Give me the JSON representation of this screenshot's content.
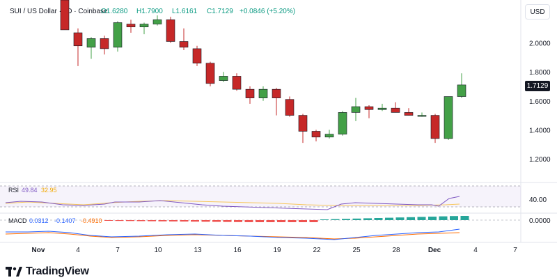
{
  "header": {
    "symbol": "SUI / US Dollar · 1D · Coinbase",
    "open": "O1.6280",
    "high": "H1.7900",
    "low": "L1.6161",
    "close": "C1.7129",
    "change": "+0.0846 (+5.20%)"
  },
  "currency_button": "USD",
  "last_price": "1.7129",
  "rsi": {
    "label": "RSI",
    "v1": "49.84",
    "v2": "32.95",
    "level": "40.00",
    "color_line": "#7e57c2",
    "color_ma": "#f7c65b"
  },
  "macd": {
    "label": "MACD",
    "v1": "0.0312",
    "v2": "-0.1407",
    "v3": "-0.4910",
    "zero": "0.0000",
    "color_macd": "#2962ff",
    "color_signal": "#ff6d00",
    "color_hist_pos": "#26a69a",
    "color_hist_neg": "#ef5350"
  },
  "brand": "TradingView",
  "chart_data": {
    "type": "candlestick",
    "title": "SUI / US Dollar · 1D · Coinbase",
    "x_tick_labels": [
      "Nov",
      "4",
      "7",
      "10",
      "13",
      "16",
      "19",
      "22",
      "25",
      "28",
      "Dec",
      "4",
      "7"
    ],
    "y_tick_labels": [
      "1.2000",
      "1.4000",
      "1.6000",
      "1.8000",
      "2.0000"
    ],
    "ylim": [
      1.13,
      2.3
    ],
    "up_color": "#43a047",
    "down_color": "#c62828",
    "candles": [
      {
        "o": 2.33,
        "h": 2.33,
        "l": 2.09,
        "c": 2.09
      },
      {
        "o": 2.07,
        "h": 2.1,
        "l": 1.84,
        "c": 1.98
      },
      {
        "o": 1.97,
        "h": 2.04,
        "l": 1.89,
        "c": 2.03
      },
      {
        "o": 2.03,
        "h": 2.05,
        "l": 1.92,
        "c": 1.96
      },
      {
        "o": 1.97,
        "h": 2.15,
        "l": 1.94,
        "c": 2.14
      },
      {
        "o": 2.13,
        "h": 2.16,
        "l": 2.07,
        "c": 2.11
      },
      {
        "o": 2.11,
        "h": 2.14,
        "l": 2.06,
        "c": 2.13
      },
      {
        "o": 2.13,
        "h": 2.19,
        "l": 2.12,
        "c": 2.16
      },
      {
        "o": 2.16,
        "h": 2.18,
        "l": 2.0,
        "c": 2.01
      },
      {
        "o": 2.01,
        "h": 2.1,
        "l": 1.95,
        "c": 1.97
      },
      {
        "o": 1.96,
        "h": 1.98,
        "l": 1.84,
        "c": 1.86
      },
      {
        "o": 1.86,
        "h": 1.87,
        "l": 1.7,
        "c": 1.72
      },
      {
        "o": 1.74,
        "h": 1.8,
        "l": 1.73,
        "c": 1.77
      },
      {
        "o": 1.77,
        "h": 1.79,
        "l": 1.67,
        "c": 1.68
      },
      {
        "o": 1.68,
        "h": 1.7,
        "l": 1.58,
        "c": 1.62
      },
      {
        "o": 1.62,
        "h": 1.7,
        "l": 1.6,
        "c": 1.68
      },
      {
        "o": 1.68,
        "h": 1.69,
        "l": 1.5,
        "c": 1.62
      },
      {
        "o": 1.61,
        "h": 1.63,
        "l": 1.49,
        "c": 1.5
      },
      {
        "o": 1.5,
        "h": 1.51,
        "l": 1.31,
        "c": 1.39
      },
      {
        "o": 1.39,
        "h": 1.4,
        "l": 1.32,
        "c": 1.35
      },
      {
        "o": 1.35,
        "h": 1.4,
        "l": 1.34,
        "c": 1.37
      },
      {
        "o": 1.37,
        "h": 1.53,
        "l": 1.36,
        "c": 1.52
      },
      {
        "o": 1.52,
        "h": 1.62,
        "l": 1.46,
        "c": 1.56
      },
      {
        "o": 1.56,
        "h": 1.57,
        "l": 1.48,
        "c": 1.54
      },
      {
        "o": 1.54,
        "h": 1.58,
        "l": 1.53,
        "c": 1.55
      },
      {
        "o": 1.55,
        "h": 1.59,
        "l": 1.52,
        "c": 1.52
      },
      {
        "o": 1.52,
        "h": 1.55,
        "l": 1.5,
        "c": 1.5
      },
      {
        "o": 1.5,
        "h": 1.52,
        "l": 1.49,
        "c": 1.5
      },
      {
        "o": 1.5,
        "h": 1.51,
        "l": 1.31,
        "c": 1.34
      },
      {
        "o": 1.34,
        "h": 1.63,
        "l": 1.33,
        "c": 1.63
      },
      {
        "o": 1.63,
        "h": 1.79,
        "l": 1.62,
        "c": 1.71
      }
    ]
  }
}
